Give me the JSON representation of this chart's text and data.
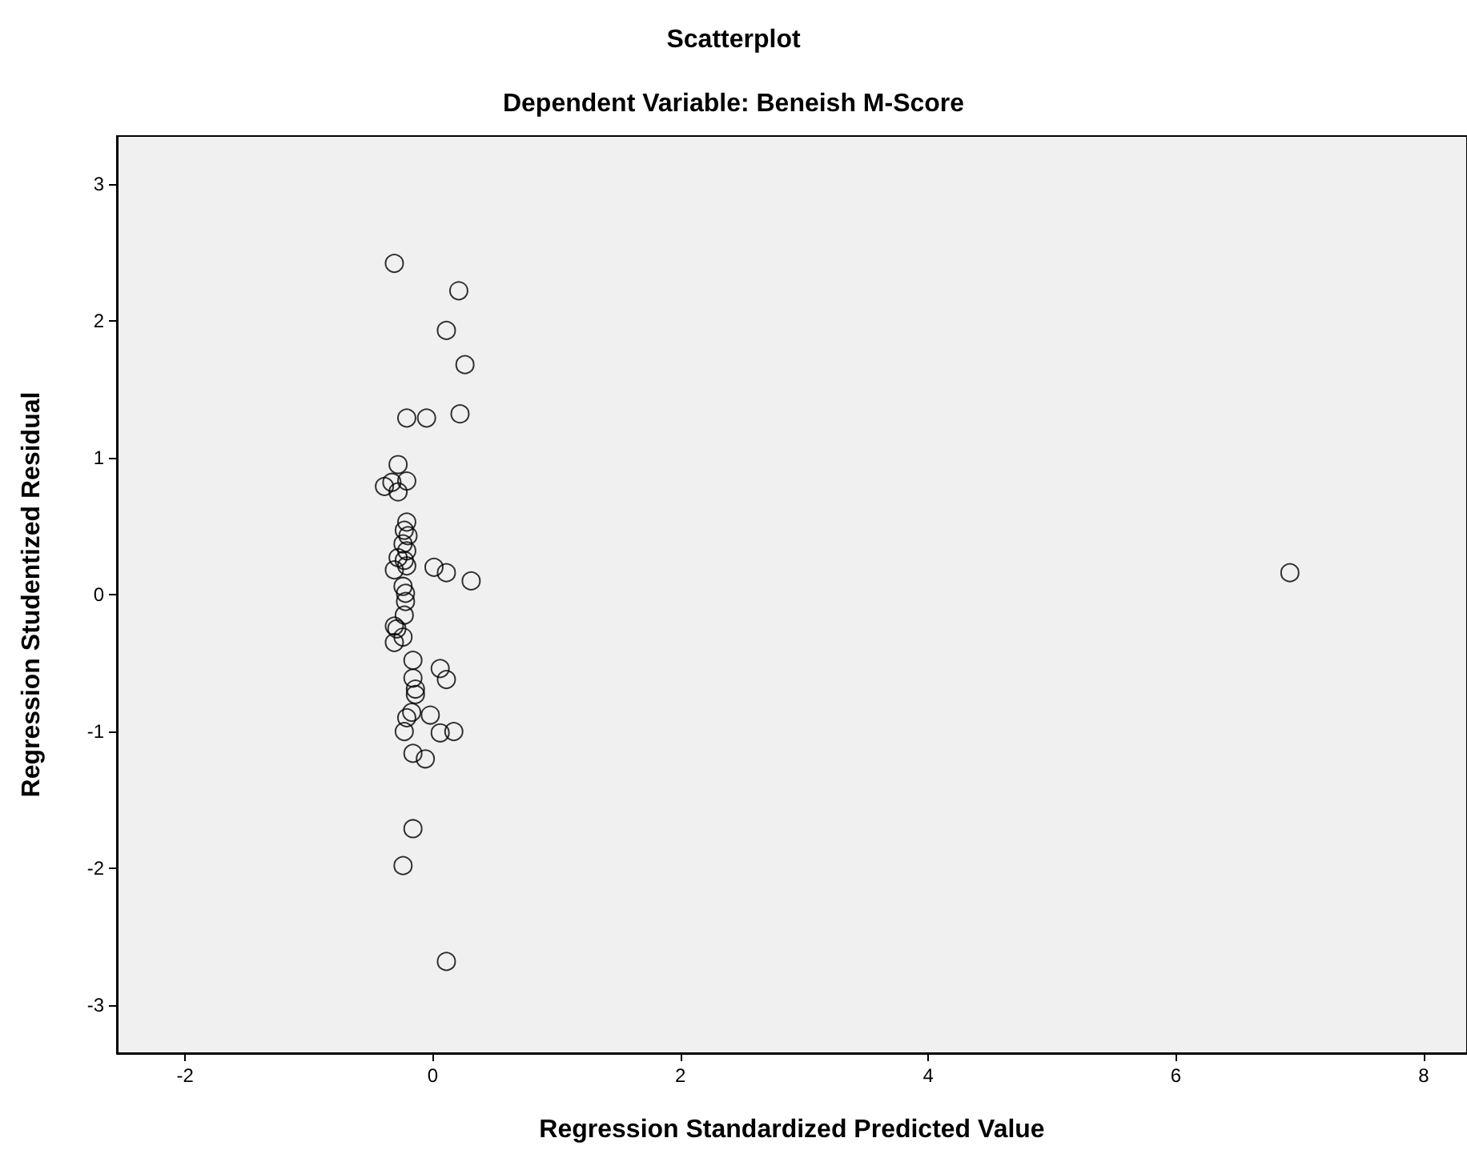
{
  "chart_data": {
    "type": "scatter",
    "title": "Scatterplot",
    "subtitle": "Dependent Variable: Beneish M-Score",
    "xlabel": "Regression Standardized Predicted Value",
    "ylabel": "Regression Studentized Residual",
    "x": [
      -0.31,
      0.21,
      0.11,
      0.26,
      -0.21,
      -0.05,
      0.22,
      -0.28,
      -0.39,
      -0.33,
      -0.21,
      -0.28,
      -0.21,
      -0.23,
      -0.2,
      -0.24,
      -0.21,
      -0.28,
      -0.23,
      -0.31,
      -0.21,
      0.01,
      0.11,
      0.31,
      6.92,
      -0.24,
      -0.22,
      -0.22,
      -0.23,
      -0.31,
      -0.29,
      -0.24,
      -0.31,
      -0.16,
      0.06,
      0.11,
      -0.16,
      -0.14,
      -0.14,
      -0.17,
      -0.21,
      -0.02,
      -0.23,
      0.06,
      0.17,
      -0.16,
      -0.06,
      -0.16,
      -0.24,
      0.11
    ],
    "values": [
      2.42,
      2.22,
      1.93,
      1.68,
      1.29,
      1.29,
      1.32,
      0.95,
      0.79,
      0.82,
      0.83,
      0.75,
      0.53,
      0.47,
      0.43,
      0.37,
      0.32,
      0.27,
      0.25,
      0.18,
      0.21,
      0.2,
      0.16,
      0.1,
      0.16,
      0.06,
      0.01,
      -0.05,
      -0.15,
      -0.23,
      -0.25,
      -0.31,
      -0.35,
      -0.48,
      -0.54,
      -0.62,
      -0.61,
      -0.69,
      -0.73,
      -0.86,
      -0.9,
      -0.88,
      -1.0,
      -1.01,
      -1.0,
      -1.16,
      -1.2,
      -1.71,
      -1.98,
      -2.68
    ],
    "color": "#000000",
    "marker": "circle",
    "grid": false,
    "xlim": [
      -2.55,
      8.35
    ],
    "ylim": [
      -3.35,
      3.35
    ],
    "xticks": [
      -2,
      0,
      2,
      4,
      6,
      8
    ],
    "yticks": [
      -3,
      -2,
      -1,
      0,
      1,
      2,
      3
    ]
  }
}
